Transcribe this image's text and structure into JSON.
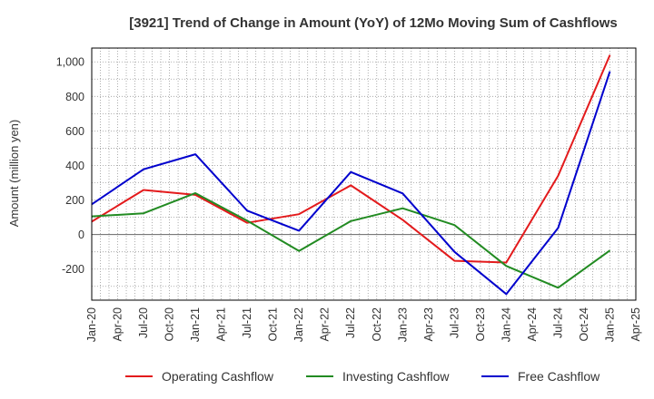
{
  "chart_data": {
    "type": "line",
    "title": "[3921]  Trend of Change in Amount (YoY) of 12Mo Moving Sum of Cashflows",
    "xlabel": "",
    "ylabel": "Amount (million yen)",
    "ylim": [
      -380,
      1080
    ],
    "yticks": [
      -200,
      0,
      200,
      400,
      600,
      800,
      1000
    ],
    "ytick_labels": [
      "-200",
      "0",
      "200",
      "400",
      "600",
      "800",
      "1,000"
    ],
    "categories": [
      "Jan-20",
      "Apr-20",
      "Jul-20",
      "Oct-20",
      "Jan-21",
      "Apr-21",
      "Jul-21",
      "Oct-21",
      "Jan-22",
      "Apr-22",
      "Jul-22",
      "Oct-22",
      "Jan-23",
      "Apr-23",
      "Jul-23",
      "Oct-23",
      "Jan-24",
      "Apr-24",
      "Jul-24",
      "Oct-24",
      "Jan-25",
      "Apr-25"
    ],
    "grid": true,
    "legend_position": "bottom",
    "series": [
      {
        "name": "Operating Cashflow",
        "color": "#e31a1c",
        "points": [
          {
            "x": "Jan-20",
            "y": 75
          },
          {
            "x": "Jul-20",
            "y": 258
          },
          {
            "x": "Jan-21",
            "y": 230
          },
          {
            "x": "Jul-21",
            "y": 68
          },
          {
            "x": "Jan-22",
            "y": 118
          },
          {
            "x": "Jul-22",
            "y": 285
          },
          {
            "x": "Jan-23",
            "y": 85
          },
          {
            "x": "Jul-23",
            "y": -152
          },
          {
            "x": "Jan-24",
            "y": -162
          },
          {
            "x": "Jul-24",
            "y": 340
          },
          {
            "x": "Jan-25",
            "y": 1040
          }
        ]
      },
      {
        "name": "Investing Cashflow",
        "color": "#228b22",
        "points": [
          {
            "x": "Jan-20",
            "y": 105
          },
          {
            "x": "Jul-20",
            "y": 123
          },
          {
            "x": "Jan-21",
            "y": 240
          },
          {
            "x": "Jul-21",
            "y": 80
          },
          {
            "x": "Jan-22",
            "y": -95
          },
          {
            "x": "Jul-22",
            "y": 78
          },
          {
            "x": "Jan-23",
            "y": 152
          },
          {
            "x": "Jul-23",
            "y": 55
          },
          {
            "x": "Jan-24",
            "y": -182
          },
          {
            "x": "Jul-24",
            "y": -308
          },
          {
            "x": "Jan-25",
            "y": -92
          }
        ]
      },
      {
        "name": "Free Cashflow",
        "color": "#0000cd",
        "points": [
          {
            "x": "Jan-20",
            "y": 175
          },
          {
            "x": "Jul-20",
            "y": 378
          },
          {
            "x": "Jan-21",
            "y": 465
          },
          {
            "x": "Jul-21",
            "y": 138
          },
          {
            "x": "Jan-22",
            "y": 22
          },
          {
            "x": "Jul-22",
            "y": 362
          },
          {
            "x": "Jan-23",
            "y": 238
          },
          {
            "x": "Jul-23",
            "y": -100
          },
          {
            "x": "Jan-24",
            "y": -345
          },
          {
            "x": "Jul-24",
            "y": 38
          },
          {
            "x": "Jan-25",
            "y": 945
          }
        ]
      }
    ]
  }
}
